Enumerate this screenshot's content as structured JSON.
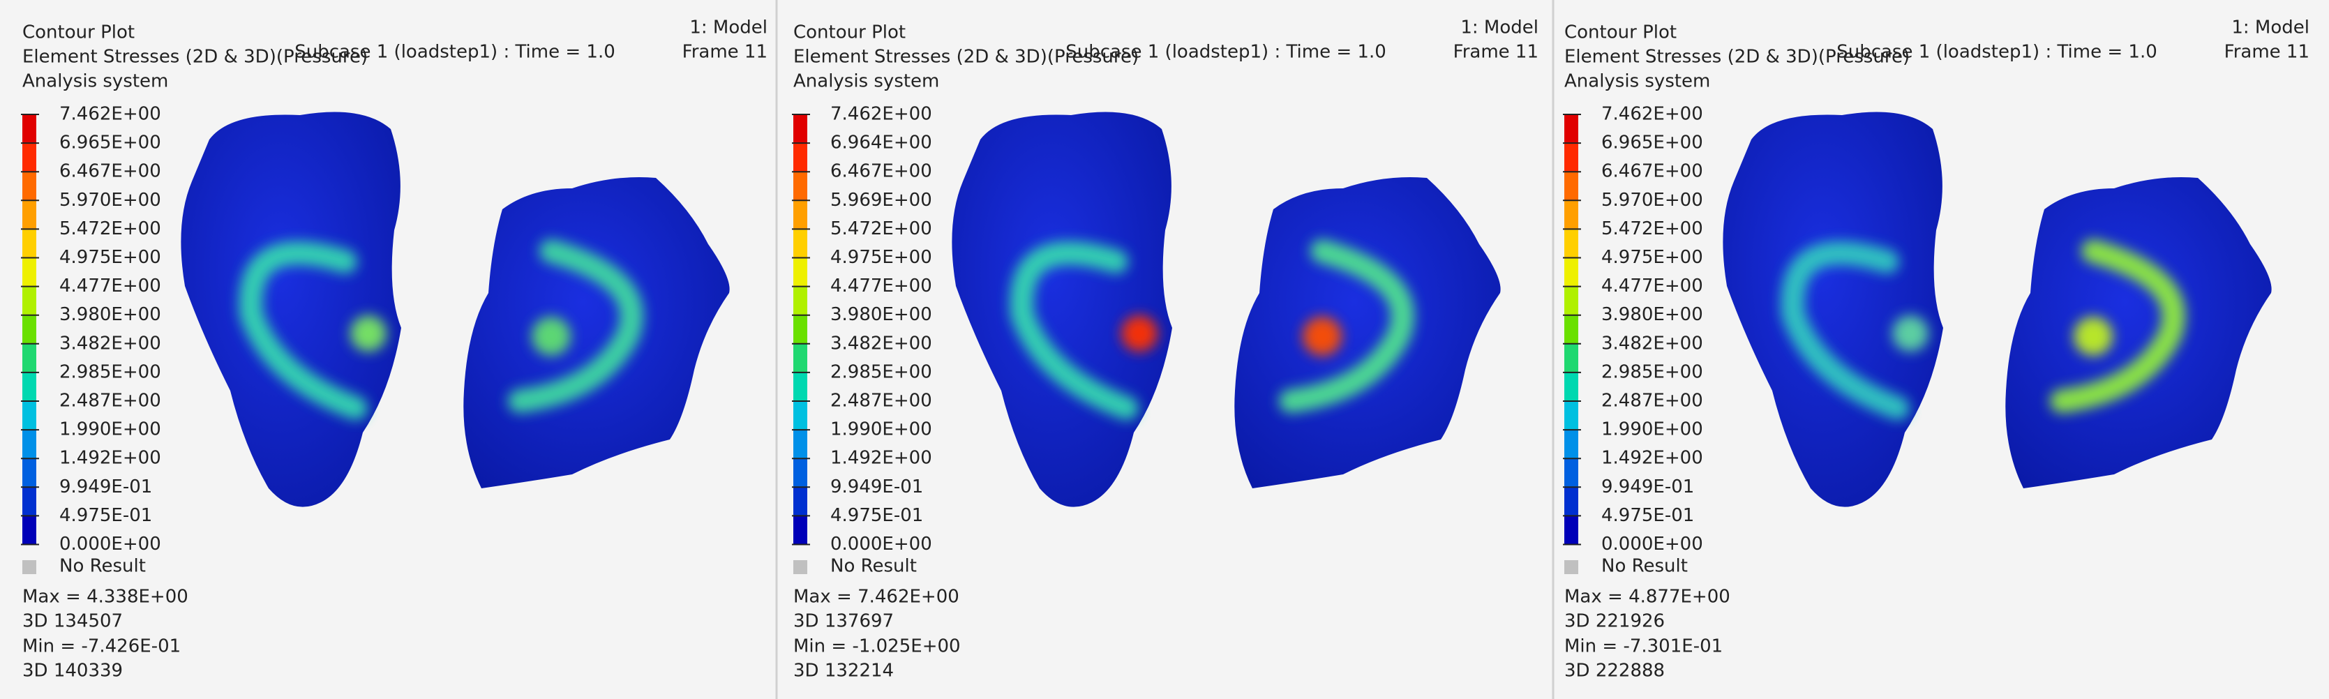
{
  "panels": [
    {
      "title": "Contour Plot",
      "result": "Element Stresses (2D & 3D)(Pressure)",
      "system": "Analysis system",
      "subcase": "Subcase 1 (loadstep1) : Time = 1.0",
      "model": "1: Model",
      "frame": "Frame 11",
      "legend": [
        "7.462E+00",
        "6.965E+00",
        "6.467E+00",
        "5.970E+00",
        "5.472E+00",
        "4.975E+00",
        "4.477E+00",
        "3.980E+00",
        "3.482E+00",
        "2.985E+00",
        "2.487E+00",
        "1.990E+00",
        "1.492E+00",
        "9.949E-01",
        "4.975E-01",
        "0.000E+00"
      ],
      "no_result": "No Result",
      "max": "Max =  4.338E+00",
      "max_id": "3D 134507",
      "min": "Min = -7.426E-01",
      "min_id": "3D 140339"
    },
    {
      "title": "Contour Plot",
      "result": "Element Stresses (2D & 3D)(Pressure)",
      "system": "Analysis system",
      "subcase": "Subcase 1 (loadstep1) : Time = 1.0",
      "model": "1: Model",
      "frame": "Frame 11",
      "legend": [
        "7.462E+00",
        "6.964E+00",
        "6.467E+00",
        "5.969E+00",
        "5.472E+00",
        "4.975E+00",
        "4.477E+00",
        "3.980E+00",
        "3.482E+00",
        "2.985E+00",
        "2.487E+00",
        "1.990E+00",
        "1.492E+00",
        "9.949E-01",
        "4.975E-01",
        "0.000E+00"
      ],
      "no_result": "No Result",
      "max": "Max =  7.462E+00",
      "max_id": "3D 137697",
      "min": "Min = -1.025E+00",
      "min_id": "3D 132214"
    },
    {
      "title": "Contour Plot",
      "result": "Element Stresses (2D & 3D)(Pressure)",
      "system": "Analysis system",
      "subcase": "Subcase 1 (loadstep1) : Time = 1.0",
      "model": "1: Model",
      "frame": "Frame 11",
      "legend": [
        "7.462E+00",
        "6.965E+00",
        "6.467E+00",
        "5.970E+00",
        "5.472E+00",
        "4.975E+00",
        "4.477E+00",
        "3.980E+00",
        "3.482E+00",
        "2.985E+00",
        "2.487E+00",
        "1.990E+00",
        "1.492E+00",
        "9.949E-01",
        "4.975E-01",
        "0.000E+00"
      ],
      "no_result": "No Result",
      "max": "Max =  4.877E+00",
      "max_id": "3D 221926",
      "min": "Min = -7.301E-01",
      "min_id": "3D 222888"
    }
  ]
}
